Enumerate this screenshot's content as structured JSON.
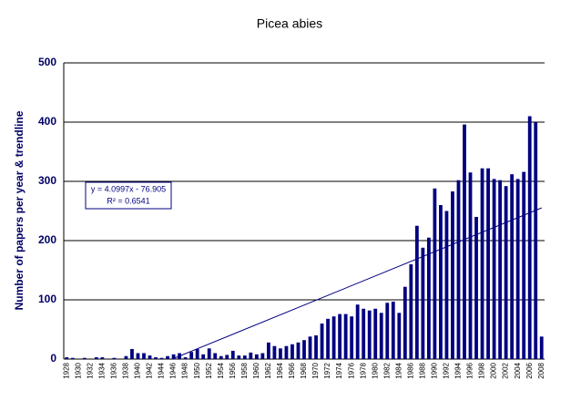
{
  "chart_data": {
    "type": "bar",
    "title": "Picea abies",
    "y_label": "Number of papers per year & trendline",
    "categories": [
      "1928",
      null,
      "1930",
      null,
      "1932",
      null,
      "1934",
      null,
      "1936",
      null,
      "1938",
      null,
      "1940",
      null,
      "1942",
      null,
      "1944",
      null,
      "1946",
      null,
      "1948",
      null,
      "1950",
      null,
      "1952",
      null,
      "1954",
      null,
      "1956",
      null,
      "1958",
      null,
      "1960",
      null,
      "1962",
      null,
      "1964",
      null,
      "1966",
      null,
      "1968",
      null,
      "1970",
      null,
      "1972",
      null,
      "1974",
      null,
      "1976",
      null,
      "1978",
      null,
      "1980",
      null,
      "1982",
      null,
      "1984",
      null,
      "1986",
      null,
      "1988",
      null,
      "1990",
      null,
      "1992",
      null,
      "1994",
      null,
      "1996",
      null,
      "1998",
      null,
      "2000",
      null,
      "2002",
      null,
      "2004",
      null,
      "2006",
      null,
      "2008"
    ],
    "values": [
      3,
      2,
      0,
      2,
      0,
      3,
      3,
      0,
      2,
      0,
      5,
      17,
      10,
      10,
      6,
      3,
      2,
      5,
      8,
      10,
      3,
      12,
      17,
      8,
      18,
      10,
      5,
      7,
      14,
      6,
      6,
      11,
      8,
      10,
      28,
      22,
      18,
      22,
      25,
      28,
      32,
      38,
      40,
      60,
      68,
      72,
      76,
      76,
      72,
      92,
      85,
      82,
      85,
      78,
      95,
      97,
      78,
      122,
      160,
      225,
      188,
      205,
      288,
      260,
      250,
      283,
      302,
      396,
      315,
      240,
      322,
      322,
      304,
      302,
      292,
      312,
      304,
      316,
      410,
      400,
      38
    ],
    "color": "#000080",
    "ylim": [
      0,
      500
    ],
    "yticks": [
      0,
      100,
      200,
      300,
      400,
      500
    ],
    "grid": true,
    "trendline": {
      "slope": 4.0997,
      "intercept": -76.905,
      "equation": "y = 4.0997x - 76.905",
      "r2": "R² = 0.6541"
    }
  }
}
